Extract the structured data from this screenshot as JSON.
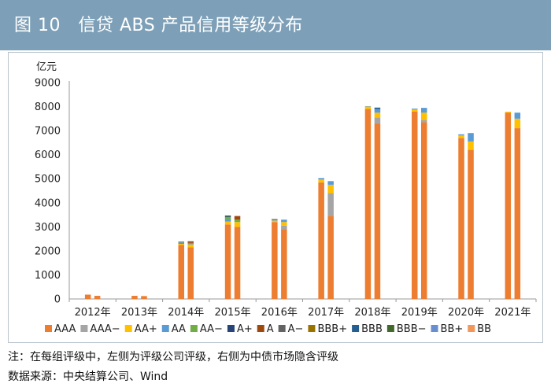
{
  "header": {
    "title": "图 10　信贷 ABS 产品信用等级分布",
    "band_color": "#7da0b8"
  },
  "notes": {
    "note": "注：在每组评级中，左侧为评级公司评级，右侧为中债市场隐含评级",
    "source": "数据来源：中央结算公司、Wind"
  },
  "chart_data": {
    "type": "bar",
    "stacked": true,
    "unit_label": "亿元",
    "ylim": [
      0,
      9000
    ],
    "yticks": [
      0,
      1000,
      2000,
      3000,
      4000,
      5000,
      6000,
      7000,
      8000,
      9000
    ],
    "grid": false,
    "legend_position": "bottom",
    "categories": [
      "2012年",
      "2013年",
      "2014年",
      "2015年",
      "2016年",
      "2017年",
      "2018年",
      "2019年",
      "2020年",
      "2021年"
    ],
    "bars_per_category": [
      "评级公司评级",
      "中债市场隐含评级"
    ],
    "series": [
      {
        "name": "AAA",
        "color": "#ed7d31",
        "values": [
          [
            180,
            130
          ],
          [
            130,
            120
          ],
          [
            2250,
            2150
          ],
          [
            3100,
            3000
          ],
          [
            3200,
            2900
          ],
          [
            4850,
            3450
          ],
          [
            7900,
            7300
          ],
          [
            7800,
            7350
          ],
          [
            6700,
            6200
          ],
          [
            7750,
            7100
          ]
        ]
      },
      {
        "name": "AAA−",
        "color": "#a5a5a5",
        "values": [
          [
            0,
            0
          ],
          [
            0,
            0
          ],
          [
            0,
            0
          ],
          [
            0,
            0
          ],
          [
            0,
            150
          ],
          [
            0,
            950
          ],
          [
            0,
            250
          ],
          [
            0,
            100
          ],
          [
            0,
            0
          ],
          [
            0,
            0
          ]
        ]
      },
      {
        "name": "AA+",
        "color": "#ffc000",
        "values": [
          [
            0,
            0
          ],
          [
            0,
            0
          ],
          [
            40,
            120
          ],
          [
            120,
            200
          ],
          [
            60,
            150
          ],
          [
            120,
            350
          ],
          [
            100,
            200
          ],
          [
            80,
            300
          ],
          [
            100,
            350
          ],
          [
            40,
            400
          ]
        ]
      },
      {
        "name": "AA",
        "color": "#5b9bd5",
        "values": [
          [
            0,
            0
          ],
          [
            0,
            0
          ],
          [
            60,
            60
          ],
          [
            100,
            0
          ],
          [
            50,
            100
          ],
          [
            60,
            150
          ],
          [
            20,
            150
          ],
          [
            40,
            200
          ],
          [
            50,
            350
          ],
          [
            0,
            250
          ]
        ]
      },
      {
        "name": "AA−",
        "color": "#70ad47",
        "values": [
          [
            0,
            0
          ],
          [
            0,
            0
          ],
          [
            20,
            0
          ],
          [
            100,
            100
          ],
          [
            0,
            0
          ],
          [
            0,
            0
          ],
          [
            0,
            0
          ],
          [
            0,
            0
          ],
          [
            0,
            0
          ],
          [
            0,
            0
          ]
        ]
      },
      {
        "name": "A+",
        "color": "#264478",
        "values": [
          [
            0,
            0
          ],
          [
            0,
            0
          ],
          [
            0,
            0
          ],
          [
            50,
            0
          ],
          [
            0,
            0
          ],
          [
            0,
            0
          ],
          [
            0,
            0
          ],
          [
            0,
            0
          ],
          [
            0,
            0
          ],
          [
            0,
            0
          ]
        ]
      },
      {
        "name": "A",
        "color": "#9e480e",
        "values": [
          [
            0,
            0
          ],
          [
            0,
            0
          ],
          [
            20,
            70
          ],
          [
            0,
            150
          ],
          [
            0,
            0
          ],
          [
            0,
            0
          ],
          [
            0,
            0
          ],
          [
            0,
            0
          ],
          [
            0,
            0
          ],
          [
            0,
            0
          ]
        ]
      },
      {
        "name": "A−",
        "color": "#636363",
        "values": [
          [
            0,
            0
          ],
          [
            0,
            0
          ],
          [
            0,
            0
          ],
          [
            0,
            0
          ],
          [
            20,
            0
          ],
          [
            0,
            0
          ],
          [
            0,
            0
          ],
          [
            0,
            0
          ],
          [
            0,
            0
          ],
          [
            0,
            0
          ]
        ]
      },
      {
        "name": "BBB+",
        "color": "#997300",
        "values": [
          [
            0,
            0
          ],
          [
            0,
            0
          ],
          [
            0,
            0
          ],
          [
            0,
            0
          ],
          [
            0,
            0
          ],
          [
            0,
            0
          ],
          [
            0,
            0
          ],
          [
            0,
            0
          ],
          [
            0,
            0
          ],
          [
            0,
            0
          ]
        ]
      },
      {
        "name": "BBB",
        "color": "#255e91",
        "values": [
          [
            0,
            0
          ],
          [
            0,
            0
          ],
          [
            0,
            0
          ],
          [
            0,
            0
          ],
          [
            0,
            0
          ],
          [
            0,
            0
          ],
          [
            0,
            60
          ],
          [
            0,
            0
          ],
          [
            0,
            0
          ],
          [
            0,
            0
          ]
        ]
      },
      {
        "name": "BBB−",
        "color": "#43682b",
        "values": [
          [
            0,
            0
          ],
          [
            0,
            0
          ],
          [
            0,
            0
          ],
          [
            0,
            0
          ],
          [
            0,
            0
          ],
          [
            0,
            0
          ],
          [
            0,
            0
          ],
          [
            0,
            0
          ],
          [
            0,
            0
          ],
          [
            0,
            0
          ]
        ]
      },
      {
        "name": "BB+",
        "color": "#698ed0",
        "values": [
          [
            0,
            0
          ],
          [
            0,
            0
          ],
          [
            0,
            0
          ],
          [
            0,
            0
          ],
          [
            0,
            0
          ],
          [
            0,
            0
          ],
          [
            0,
            0
          ],
          [
            0,
            0
          ],
          [
            0,
            0
          ],
          [
            0,
            0
          ]
        ]
      },
      {
        "name": "BB",
        "color": "#f1975a",
        "values": [
          [
            0,
            0
          ],
          [
            0,
            0
          ],
          [
            0,
            0
          ],
          [
            0,
            0
          ],
          [
            0,
            0
          ],
          [
            0,
            0
          ],
          [
            0,
            0
          ],
          [
            0,
            0
          ],
          [
            0,
            0
          ],
          [
            0,
            0
          ]
        ]
      }
    ]
  }
}
